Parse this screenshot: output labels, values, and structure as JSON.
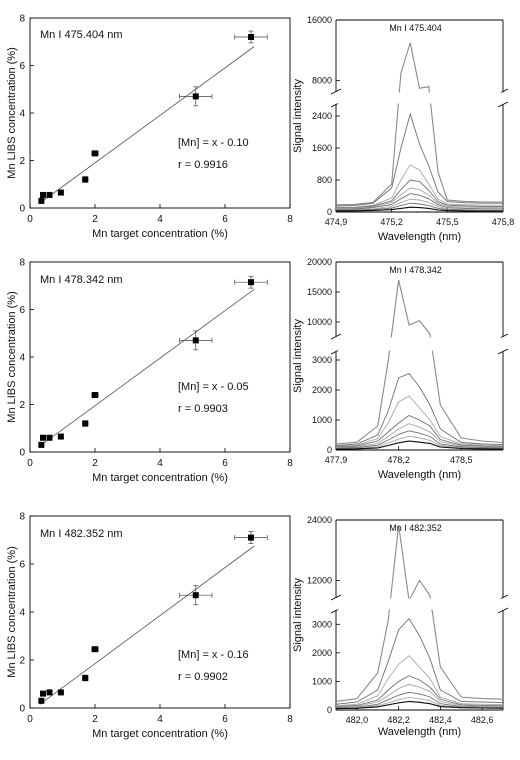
{
  "chart_data": [
    {
      "type": "scatter",
      "title": "Mn I 475.404 nm",
      "xlabel": "Mn target concentration (%)",
      "ylabel": "Mn LIBS concentration (%)",
      "xlim": [
        0,
        8
      ],
      "ylim": [
        0,
        8
      ],
      "xticks": [
        "0",
        "2",
        "4",
        "6",
        "8"
      ],
      "yticks": [
        "0",
        "2",
        "4",
        "6",
        "8"
      ],
      "points": [
        {
          "x": 0.35,
          "y": 0.3,
          "xerr": 0.0,
          "yerr": 0.05
        },
        {
          "x": 0.4,
          "y": 0.55,
          "xerr": 0.0,
          "yerr": 0.05
        },
        {
          "x": 0.6,
          "y": 0.55,
          "xerr": 0.0,
          "yerr": 0.05
        },
        {
          "x": 0.95,
          "y": 0.65,
          "xerr": 0.0,
          "yerr": 0.05
        },
        {
          "x": 1.7,
          "y": 1.2,
          "xerr": 0.08,
          "yerr": 0.12
        },
        {
          "x": 2.0,
          "y": 2.3,
          "xerr": 0.1,
          "yerr": 0.08
        },
        {
          "x": 5.1,
          "y": 4.7,
          "xerr": 0.5,
          "yerr": 0.4
        },
        {
          "x": 6.8,
          "y": 7.2,
          "xerr": 0.5,
          "yerr": 0.25
        }
      ],
      "fit": {
        "x": [
          0.3,
          6.9
        ],
        "y": [
          0.2,
          6.8
        ]
      },
      "equation": "[Mn] = x - 0.10",
      "r_label": "r = 0.9916"
    },
    {
      "type": "scatter",
      "title": "Mn I 478.342 nm",
      "xlabel": "Mn target concentration (%)",
      "ylabel": "Mn LIBS concentration (%)",
      "xlim": [
        0,
        8
      ],
      "ylim": [
        0,
        8
      ],
      "xticks": [
        "0",
        "2",
        "4",
        "6",
        "8"
      ],
      "yticks": [
        "0",
        "2",
        "4",
        "6",
        "8"
      ],
      "points": [
        {
          "x": 0.35,
          "y": 0.3,
          "xerr": 0.0,
          "yerr": 0.05
        },
        {
          "x": 0.4,
          "y": 0.6,
          "xerr": 0.0,
          "yerr": 0.05
        },
        {
          "x": 0.6,
          "y": 0.6,
          "xerr": 0.0,
          "yerr": 0.05
        },
        {
          "x": 0.95,
          "y": 0.65,
          "xerr": 0.0,
          "yerr": 0.05
        },
        {
          "x": 1.7,
          "y": 1.2,
          "xerr": 0.08,
          "yerr": 0.12
        },
        {
          "x": 2.0,
          "y": 2.4,
          "xerr": 0.1,
          "yerr": 0.08
        },
        {
          "x": 5.1,
          "y": 4.7,
          "xerr": 0.5,
          "yerr": 0.4
        },
        {
          "x": 6.8,
          "y": 7.15,
          "xerr": 0.5,
          "yerr": 0.25
        }
      ],
      "fit": {
        "x": [
          0.3,
          6.9
        ],
        "y": [
          0.25,
          6.85
        ]
      },
      "equation": "[Mn] = x - 0.05",
      "r_label": "r = 0.9903"
    },
    {
      "type": "scatter",
      "title": "Mn I 482.352 nm",
      "xlabel": "Mn target concentration (%)",
      "ylabel": "Mn LIBS concentration (%)",
      "xlim": [
        0,
        8
      ],
      "ylim": [
        0,
        8
      ],
      "xticks": [
        "0",
        "2",
        "4",
        "6",
        "8"
      ],
      "yticks": [
        "0",
        "2",
        "4",
        "6",
        "8"
      ],
      "points": [
        {
          "x": 0.35,
          "y": 0.3,
          "xerr": 0.0,
          "yerr": 0.05
        },
        {
          "x": 0.4,
          "y": 0.6,
          "xerr": 0.0,
          "yerr": 0.05
        },
        {
          "x": 0.6,
          "y": 0.65,
          "xerr": 0.0,
          "yerr": 0.05
        },
        {
          "x": 0.95,
          "y": 0.65,
          "xerr": 0.0,
          "yerr": 0.05
        },
        {
          "x": 1.7,
          "y": 1.25,
          "xerr": 0.08,
          "yerr": 0.12
        },
        {
          "x": 2.0,
          "y": 2.45,
          "xerr": 0.1,
          "yerr": 0.08
        },
        {
          "x": 5.1,
          "y": 4.7,
          "xerr": 0.5,
          "yerr": 0.4
        },
        {
          "x": 6.8,
          "y": 7.1,
          "xerr": 0.5,
          "yerr": 0.25
        }
      ],
      "fit": {
        "x": [
          0.3,
          6.9
        ],
        "y": [
          0.15,
          6.75
        ]
      },
      "equation": "[Mn] = x - 0.16",
      "r_label": "r = 0.9902"
    },
    {
      "type": "line",
      "title": "Mn I 475.404",
      "xlabel": "Wavelength (nm)",
      "ylabel": "Signal intensity",
      "xlim": [
        474.9,
        475.8
      ],
      "xticks": [
        {
          "v": 474.9,
          "label": "474,9"
        },
        {
          "v": 475.2,
          "label": "475,2"
        },
        {
          "v": 475.5,
          "label": "475,5"
        },
        {
          "v": 475.8,
          "label": "475,8"
        }
      ],
      "ylim": [
        0,
        16000
      ],
      "break": [
        2700,
        6500
      ],
      "yticks": [
        {
          "v": 0,
          "label": "0"
        },
        {
          "v": 800,
          "label": "800"
        },
        {
          "v": 1600,
          "label": "1600"
        },
        {
          "v": 2400,
          "label": "2400"
        },
        {
          "v": 8000,
          "label": "8000"
        },
        {
          "v": 16000,
          "label": "16000"
        }
      ],
      "x": [
        474.9,
        475.0,
        475.1,
        475.2,
        475.25,
        475.3,
        475.35,
        475.4,
        475.45,
        475.5,
        475.6,
        475.7,
        475.8
      ],
      "series": [
        {
          "values": [
            180,
            190,
            240,
            700,
            9000,
            13000,
            7000,
            7200,
            1000,
            300,
            260,
            250,
            250
          ]
        },
        {
          "values": [
            150,
            160,
            220,
            600,
            1600,
            2450,
            1700,
            1150,
            500,
            260,
            230,
            220,
            220
          ]
        },
        {
          "values": [
            110,
            120,
            170,
            350,
            800,
            1180,
            1050,
            700,
            320,
            200,
            180,
            170,
            170
          ]
        },
        {
          "values": [
            100,
            110,
            150,
            280,
            560,
            800,
            760,
            540,
            260,
            170,
            150,
            140,
            140
          ]
        },
        {
          "values": [
            90,
            95,
            130,
            240,
            430,
            600,
            560,
            420,
            220,
            140,
            120,
            110,
            110
          ]
        },
        {
          "values": [
            70,
            75,
            110,
            190,
            330,
            460,
            420,
            330,
            180,
            110,
            90,
            80,
            80
          ]
        },
        {
          "values": [
            50,
            55,
            80,
            140,
            240,
            320,
            300,
            240,
            130,
            80,
            60,
            55,
            55
          ]
        },
        {
          "values": [
            40,
            45,
            60,
            100,
            160,
            220,
            200,
            160,
            90,
            60,
            45,
            40,
            40
          ]
        },
        {
          "values": [
            30,
            30,
            40,
            60,
            90,
            120,
            110,
            90,
            50,
            35,
            25,
            20,
            20
          ]
        }
      ]
    },
    {
      "type": "line",
      "title": "Mn I 478.342",
      "xlabel": "Wavelength (nm)",
      "ylabel": "Signal intensity",
      "xlim": [
        477.9,
        478.7
      ],
      "xticks": [
        {
          "v": 477.9,
          "label": "477,9"
        },
        {
          "v": 478.2,
          "label": "478,2"
        },
        {
          "v": 478.5,
          "label": "478,5"
        }
      ],
      "ylim": [
        0,
        20000
      ],
      "break": [
        3300,
        7500
      ],
      "yticks": [
        {
          "v": 0,
          "label": "0"
        },
        {
          "v": 1000,
          "label": "1000"
        },
        {
          "v": 2000,
          "label": "2000"
        },
        {
          "v": 3000,
          "label": "3000"
        },
        {
          "v": 10000,
          "label": "10000"
        },
        {
          "v": 15000,
          "label": "15000"
        },
        {
          "v": 20000,
          "label": "20000"
        }
      ],
      "x": [
        477.9,
        478.0,
        478.1,
        478.15,
        478.2,
        478.25,
        478.3,
        478.35,
        478.4,
        478.5,
        478.6,
        478.7
      ],
      "series": [
        {
          "values": [
            200,
            260,
            800,
            3500,
            17000,
            9500,
            10200,
            8000,
            1500,
            400,
            300,
            250
          ]
        },
        {
          "values": [
            150,
            200,
            500,
            1300,
            2400,
            2550,
            2100,
            1500,
            700,
            250,
            200,
            180
          ]
        },
        {
          "values": [
            120,
            160,
            380,
            900,
            1600,
            1800,
            1400,
            1000,
            450,
            200,
            160,
            150
          ]
        },
        {
          "values": [
            100,
            130,
            300,
            600,
            900,
            1150,
            1000,
            800,
            350,
            160,
            130,
            120
          ]
        },
        {
          "values": [
            80,
            100,
            220,
            450,
            700,
            880,
            760,
            600,
            280,
            130,
            100,
            90
          ]
        },
        {
          "values": [
            60,
            80,
            160,
            330,
            520,
            640,
            560,
            450,
            200,
            100,
            80,
            70
          ]
        },
        {
          "values": [
            40,
            55,
            110,
            230,
            360,
            460,
            400,
            320,
            150,
            70,
            55,
            50
          ]
        },
        {
          "values": [
            30,
            40,
            70,
            150,
            240,
            300,
            260,
            220,
            100,
            50,
            40,
            35
          ]
        }
      ]
    },
    {
      "type": "line",
      "title": "Mn I 482.352",
      "xlabel": "Wavelength (nm)",
      "ylabel": "Signal intensity",
      "xlim": [
        481.9,
        482.7
      ],
      "xticks": [
        {
          "v": 482.0,
          "label": "482,0"
        },
        {
          "v": 482.2,
          "label": "482,2"
        },
        {
          "v": 482.4,
          "label": "482,4"
        },
        {
          "v": 482.6,
          "label": "482,6"
        }
      ],
      "ylim": [
        0,
        24000
      ],
      "break": [
        3500,
        8500
      ],
      "yticks": [
        {
          "v": 0,
          "label": "0"
        },
        {
          "v": 1000,
          "label": "1000"
        },
        {
          "v": 2000,
          "label": "2000"
        },
        {
          "v": 3000,
          "label": "3000"
        },
        {
          "v": 12000,
          "label": "12000"
        },
        {
          "v": 24000,
          "label": "24000"
        }
      ],
      "x": [
        481.9,
        482.0,
        482.1,
        482.15,
        482.2,
        482.25,
        482.3,
        482.35,
        482.4,
        482.5,
        482.6,
        482.7
      ],
      "series": [
        {
          "values": [
            300,
            400,
            1300,
            4000,
            23000,
            8000,
            12000,
            9000,
            1500,
            450,
            400,
            380
          ]
        },
        {
          "values": [
            200,
            280,
            700,
            1700,
            2800,
            3200,
            2600,
            1800,
            700,
            300,
            280,
            260
          ]
        },
        {
          "values": [
            150,
            200,
            500,
            1100,
            1600,
            1900,
            1500,
            1100,
            450,
            220,
            200,
            190
          ]
        },
        {
          "values": [
            120,
            160,
            350,
            700,
            1000,
            1200,
            1050,
            800,
            380,
            180,
            160,
            150
          ]
        },
        {
          "values": [
            100,
            130,
            280,
            500,
            750,
            900,
            800,
            650,
            300,
            150,
            130,
            120
          ]
        },
        {
          "values": [
            80,
            100,
            200,
            360,
            520,
            620,
            560,
            460,
            220,
            120,
            100,
            95
          ]
        },
        {
          "values": [
            60,
            80,
            150,
            250,
            360,
            440,
            400,
            320,
            160,
            100,
            85,
            80
          ]
        },
        {
          "values": [
            50,
            60,
            110,
            180,
            250,
            300,
            270,
            220,
            120,
            80,
            70,
            65
          ]
        }
      ]
    }
  ]
}
